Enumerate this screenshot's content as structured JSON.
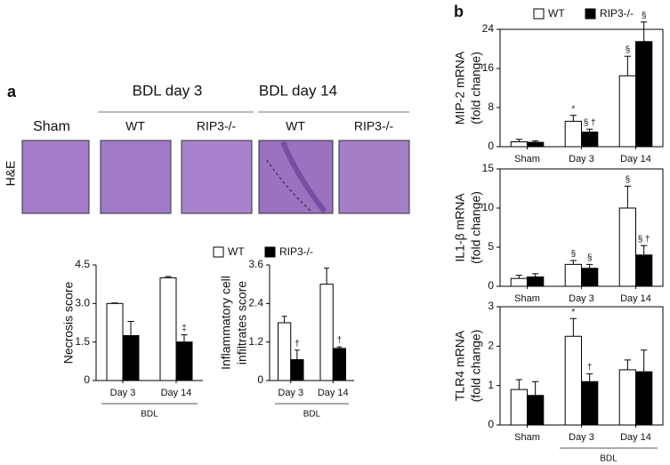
{
  "histology": {
    "panel_label": "a",
    "headers": [
      "BDL day 3",
      "BDL day 14"
    ],
    "image_labels": [
      "Sham",
      "WT",
      "RIP3-/-",
      "WT",
      "RIP3-/-"
    ],
    "stain": "H&E"
  },
  "panel_b_label": "b",
  "chart_data": [
    {
      "type": "bar",
      "ylabel": [
        "Necrosis score"
      ],
      "categories": [
        "Day 3",
        "Day 14"
      ],
      "x_group_label": "BDL",
      "ylim": [
        0,
        4.5
      ],
      "yticks": [
        0,
        1.5,
        {
          "value": 3,
          "label": "3.0"
        },
        4.5
      ],
      "legend": true,
      "series": [
        {
          "name": "WT",
          "color": "#ffffff",
          "values": [
            3.0,
            4.0
          ],
          "errors": [
            0.02,
            0.05
          ],
          "annotations": [
            null,
            null
          ]
        },
        {
          "name": "RIP3-/-",
          "color": "#000000",
          "values": [
            1.75,
            1.5
          ],
          "errors": [
            0.55,
            0.28
          ],
          "annotations": [
            null,
            "‡"
          ]
        }
      ]
    },
    {
      "type": "bar",
      "ylabel": [
        "Inflammatory cell",
        "infiltrates score"
      ],
      "categories": [
        "Day 3",
        "Day 14"
      ],
      "x_group_label": "BDL",
      "ylim": [
        0,
        3.6
      ],
      "yticks": [
        0,
        1.2,
        2.4,
        3.6
      ],
      "series": [
        {
          "color": "#ffffff",
          "values": [
            1.8,
            3.0
          ],
          "errors": [
            0.2,
            0.5
          ],
          "annotations": [
            null,
            null
          ]
        },
        {
          "color": "#000000",
          "values": [
            0.65,
            1.0
          ],
          "errors": [
            0.3,
            0.05
          ],
          "annotations": [
            "†",
            "†"
          ]
        }
      ]
    },
    {
      "type": "bar",
      "ylabel": [
        "MIP-2 mRNA",
        "(fold change)"
      ],
      "categories": [
        "Sham",
        "Day 3",
        "Day 14"
      ],
      "ylim": [
        0,
        24
      ],
      "yticks": [
        0,
        8,
        16,
        24
      ],
      "legend": true,
      "frame": true,
      "series": [
        {
          "name": "WT",
          "color": "#ffffff",
          "values": [
            1.0,
            5.2,
            14.5
          ],
          "errors": [
            0.5,
            1.2,
            4.0
          ],
          "annotations": [
            null,
            "*",
            "§"
          ]
        },
        {
          "name": "RIP3-/-",
          "color": "#000000",
          "values": [
            0.9,
            3.0,
            21.5
          ],
          "errors": [
            0.3,
            0.6,
            4.0
          ],
          "annotations": [
            null,
            "§ †",
            "§"
          ]
        }
      ]
    },
    {
      "type": "bar",
      "ylabel": [
        "IL1-β mRNA",
        "(fold change)"
      ],
      "categories": [
        "Sham",
        "Day 3",
        "Day 14"
      ],
      "ylim": [
        0,
        15
      ],
      "yticks": [
        0,
        5,
        10,
        15
      ],
      "frame": true,
      "series": [
        {
          "color": "#ffffff",
          "values": [
            1.0,
            2.8,
            10.0
          ],
          "errors": [
            0.4,
            0.5,
            2.8
          ],
          "annotations": [
            null,
            "§",
            "§"
          ]
        },
        {
          "color": "#000000",
          "values": [
            1.2,
            2.3,
            4.0
          ],
          "errors": [
            0.4,
            0.5,
            1.2
          ],
          "annotations": [
            null,
            "§",
            "§ †"
          ]
        }
      ]
    },
    {
      "type": "bar",
      "ylabel": [
        "TLR4 mRNA",
        "(fold change)"
      ],
      "categories": [
        "Sham",
        "Day 3",
        "Day 14"
      ],
      "x_group_label": "BDL",
      "ylim": [
        0,
        3
      ],
      "yticks": [
        0,
        1,
        2,
        3
      ],
      "frame": true,
      "series": [
        {
          "color": "#ffffff",
          "values": [
            0.9,
            2.25,
            1.4
          ],
          "errors": [
            0.25,
            0.45,
            0.25
          ],
          "annotations": [
            null,
            "*",
            null
          ]
        },
        {
          "color": "#000000",
          "values": [
            0.75,
            1.1,
            1.35
          ],
          "errors": [
            0.35,
            0.2,
            0.55
          ],
          "annotations": [
            null,
            "†",
            null
          ]
        }
      ]
    }
  ]
}
